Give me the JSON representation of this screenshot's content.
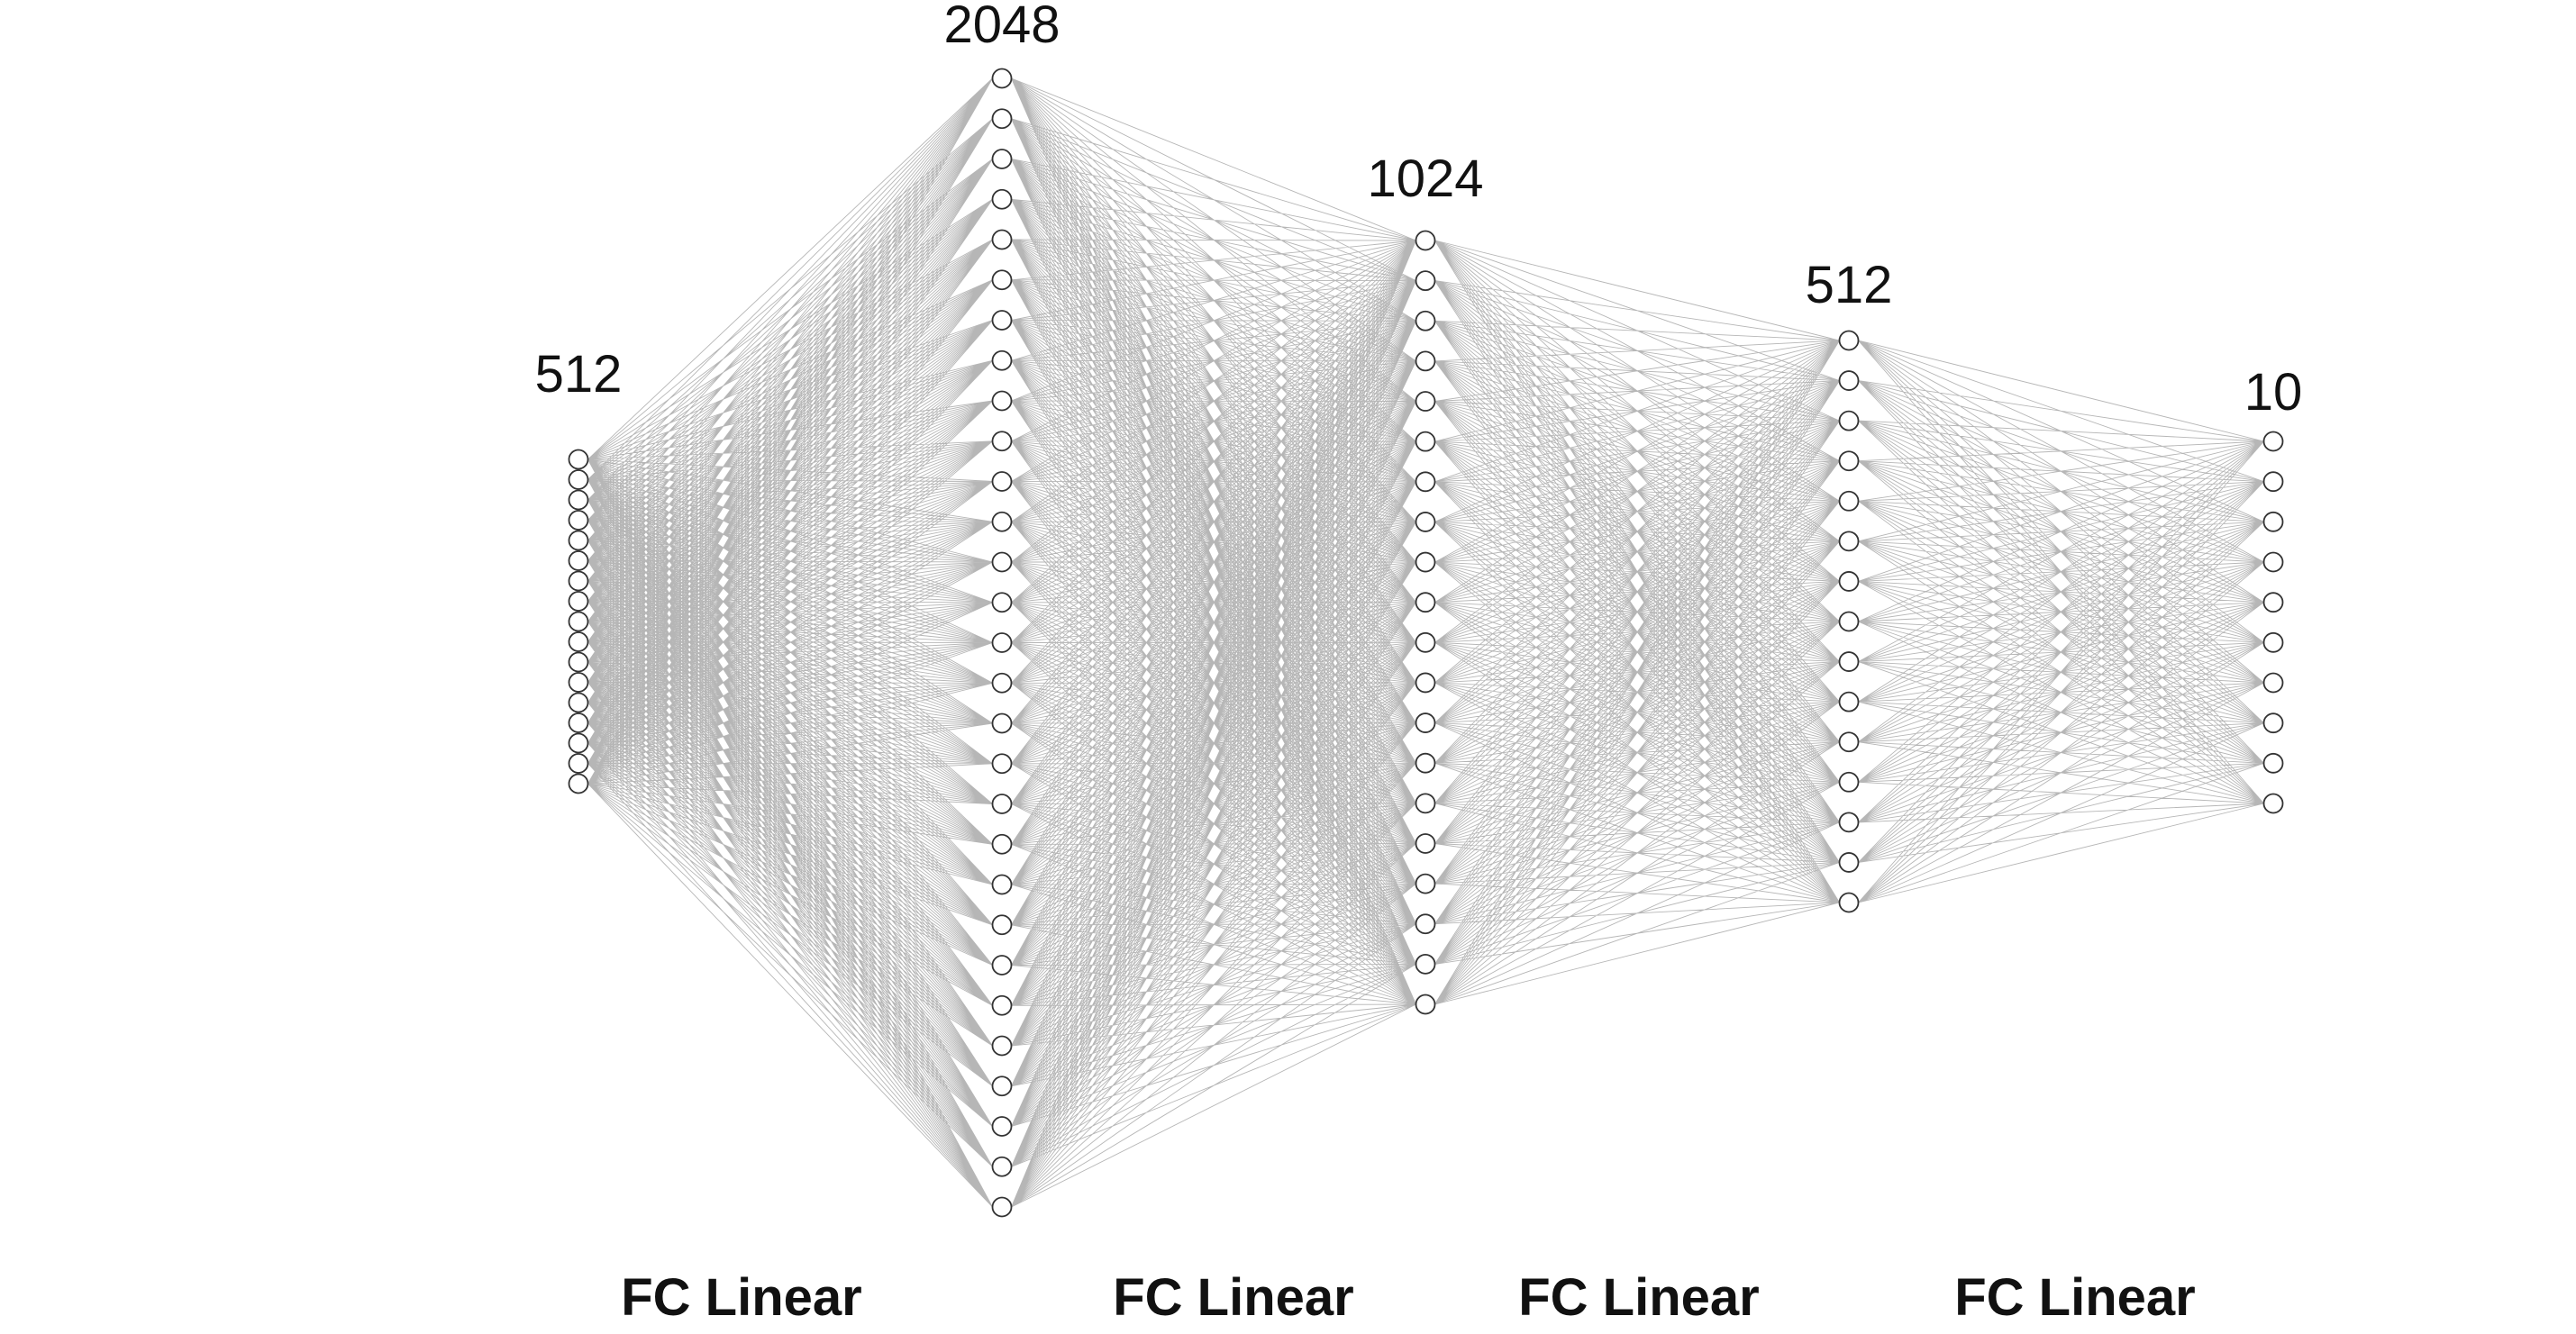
{
  "diagram": {
    "layers": [
      {
        "size_label": "512",
        "drawn_nodes": 17
      },
      {
        "size_label": "2048",
        "drawn_nodes": 29
      },
      {
        "size_label": "1024",
        "drawn_nodes": 20
      },
      {
        "size_label": "512",
        "drawn_nodes": 15
      },
      {
        "size_label": "10",
        "drawn_nodes": 10
      }
    ],
    "connections": [
      {
        "label": "FC Linear"
      },
      {
        "label": "FC Linear"
      },
      {
        "label": "FC Linear"
      },
      {
        "label": "FC Linear"
      }
    ],
    "colors": {
      "edge": "#7a7a7a",
      "node_fill": "#ffffff",
      "node_stroke": "#333333",
      "text": "#111111"
    }
  }
}
